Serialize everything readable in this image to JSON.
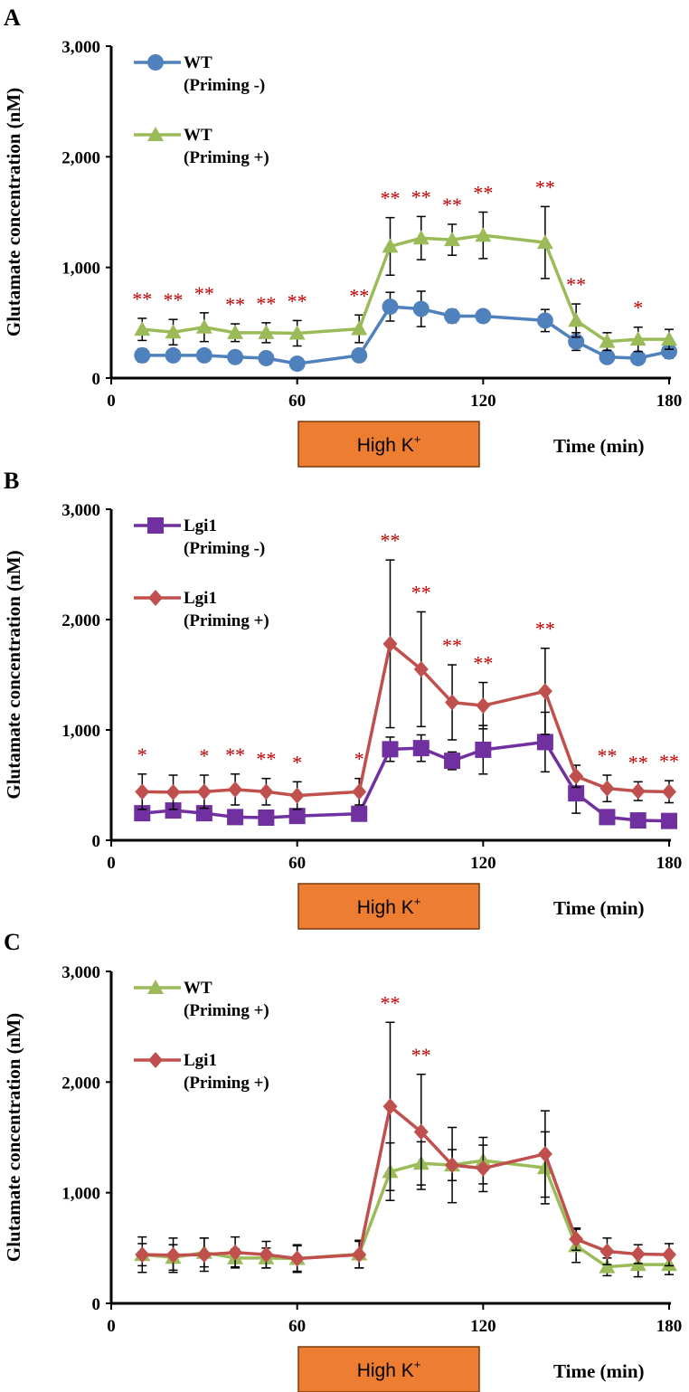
{
  "chart_data": [
    {
      "panel": "A",
      "type": "line",
      "ylabel": "Glutamate concentration (nM)",
      "xlabel": "Time (min)",
      "ylim": [
        0,
        3000
      ],
      "xlim": [
        0,
        180
      ],
      "yticks": [
        "0",
        "1,000",
        "2,000",
        "3,000"
      ],
      "xticks": [
        "0",
        "60",
        "120",
        "180"
      ],
      "stimulus_label": "High K",
      "stimulus_sup": "+",
      "stimulus_range": [
        60,
        120
      ],
      "x": [
        10,
        20,
        30,
        40,
        50,
        60,
        80,
        90,
        100,
        110,
        120,
        140,
        150,
        160,
        170,
        180
      ],
      "series": [
        {
          "name": "WT",
          "name2": "(Priming -)",
          "color": "#4f81bd",
          "marker": "circle",
          "values": [
            205,
            205,
            205,
            190,
            180,
            130,
            205,
            645,
            625,
            560,
            560,
            520,
            330,
            190,
            180,
            240
          ],
          "err": [
            60,
            40,
            40,
            40,
            30,
            20,
            40,
            130,
            160,
            60,
            50,
            100,
            80,
            40,
            40,
            60
          ]
        },
        {
          "name": "WT",
          "name2": "(Priming +)",
          "color": "#9bbb59",
          "marker": "triangle",
          "values": [
            440,
            415,
            460,
            410,
            410,
            405,
            445,
            1190,
            1265,
            1250,
            1290,
            1225,
            520,
            330,
            350,
            350
          ],
          "err": [
            100,
            115,
            130,
            80,
            90,
            115,
            125,
            260,
            195,
            140,
            210,
            325,
            150,
            80,
            110,
            90
          ]
        }
      ],
      "significance": [
        "**",
        "**",
        "**",
        "**",
        "**",
        "**",
        "**",
        "**",
        "**",
        "**",
        "**",
        "**",
        "**",
        "",
        "*",
        ""
      ],
      "significance_above": 1
    },
    {
      "panel": "B",
      "type": "line",
      "ylabel": "Glutamate concentration (nM)",
      "xlabel": "Time (min)",
      "ylim": [
        0,
        3000
      ],
      "xlim": [
        0,
        180
      ],
      "yticks": [
        "0",
        "1,000",
        "2,000",
        "3,000"
      ],
      "xticks": [
        "0",
        "60",
        "120",
        "180"
      ],
      "stimulus_label": "High K",
      "stimulus_sup": "+",
      "stimulus_range": [
        60,
        120
      ],
      "x": [
        10,
        20,
        30,
        40,
        50,
        60,
        80,
        90,
        100,
        110,
        120,
        140,
        150,
        160,
        170,
        180
      ],
      "series": [
        {
          "name": "Lgi1",
          "name2": "(Priming -)",
          "color": "#7030a0",
          "marker": "square",
          "values": [
            245,
            270,
            245,
            210,
            205,
            220,
            240,
            825,
            835,
            720,
            820,
            890,
            425,
            210,
            180,
            175
          ],
          "err": [
            60,
            60,
            50,
            40,
            40,
            40,
            50,
            110,
            120,
            80,
            220,
            270,
            180,
            40,
            30,
            30
          ]
        },
        {
          "name": "Lgi1",
          "name2": "(Priming +)",
          "color": "#c0504d",
          "marker": "diamond",
          "values": [
            440,
            435,
            440,
            460,
            440,
            405,
            440,
            1780,
            1550,
            1250,
            1220,
            1350,
            580,
            470,
            445,
            440
          ],
          "err": [
            160,
            155,
            150,
            140,
            120,
            125,
            120,
            760,
            520,
            340,
            210,
            390,
            100,
            120,
            85,
            100
          ]
        }
      ],
      "significance": [
        "*",
        "",
        "*",
        "**",
        "**",
        "*",
        "*",
        "**",
        "**",
        "**",
        "**",
        "**",
        "",
        "**",
        "**",
        "**"
      ],
      "significance_above": 1
    },
    {
      "panel": "C",
      "type": "line",
      "ylabel": "Glutamate concentration (nM)",
      "xlabel": "Time (min)",
      "ylim": [
        0,
        3000
      ],
      "xlim": [
        0,
        180
      ],
      "yticks": [
        "0",
        "1,000",
        "2,000",
        "3,000"
      ],
      "xticks": [
        "0",
        "60",
        "120",
        "180"
      ],
      "stimulus_label": "High K",
      "stimulus_sup": "+",
      "stimulus_range": [
        60,
        120
      ],
      "x": [
        10,
        20,
        30,
        40,
        50,
        60,
        80,
        90,
        100,
        110,
        120,
        140,
        150,
        160,
        170,
        180
      ],
      "series": [
        {
          "name": "WT",
          "name2": "(Priming +)",
          "color": "#9bbb59",
          "marker": "triangle",
          "values": [
            440,
            415,
            460,
            410,
            410,
            405,
            445,
            1190,
            1265,
            1250,
            1290,
            1225,
            520,
            330,
            350,
            350
          ],
          "err": [
            100,
            115,
            130,
            80,
            90,
            115,
            125,
            260,
            195,
            140,
            210,
            325,
            150,
            80,
            110,
            90
          ]
        },
        {
          "name": "Lgi1",
          "name2": "(Priming +)",
          "color": "#c0504d",
          "marker": "diamond",
          "values": [
            440,
            435,
            440,
            460,
            440,
            405,
            440,
            1780,
            1550,
            1250,
            1220,
            1350,
            580,
            470,
            445,
            440
          ],
          "err": [
            160,
            155,
            150,
            140,
            120,
            125,
            120,
            760,
            520,
            340,
            210,
            390,
            100,
            120,
            85,
            100
          ]
        }
      ],
      "significance": [
        "",
        "",
        "",
        "",
        "",
        "",
        "",
        "**",
        "**",
        "",
        "",
        "",
        "",
        "",
        "",
        ""
      ],
      "significance_above": 1
    }
  ]
}
